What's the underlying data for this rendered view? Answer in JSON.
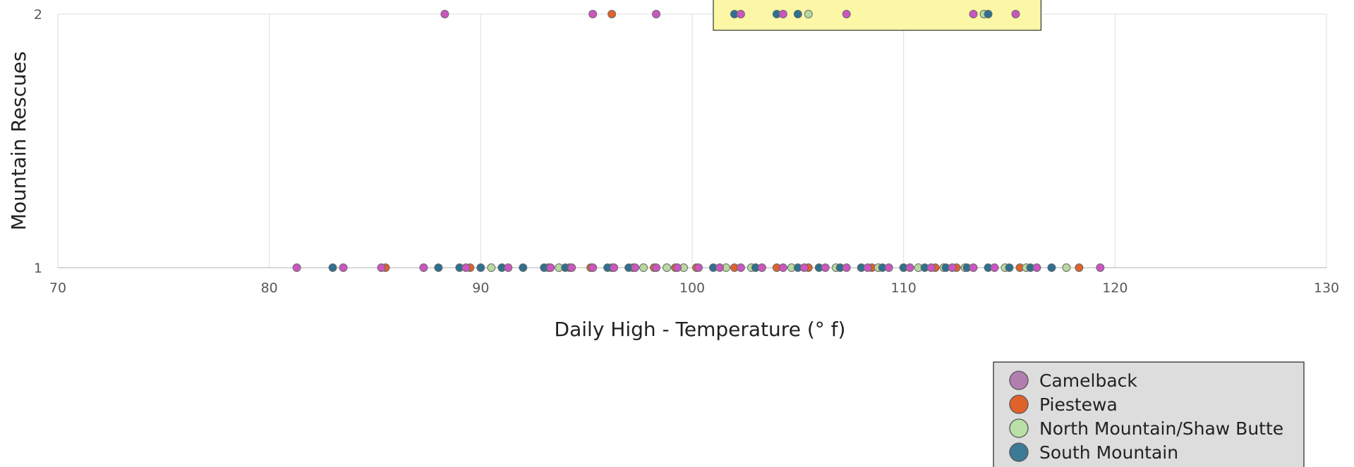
{
  "chart_data": {
    "type": "scatter",
    "title": "",
    "xlabel": "Daily High - Temperature (° f)",
    "ylabel": "Mountain Rescues",
    "xlim": [
      70,
      130
    ],
    "ylim": [
      1,
      2
    ],
    "x_ticks": [
      "70",
      "80",
      "90",
      "100",
      "110",
      "120",
      "130"
    ],
    "y_ticks": [
      "1",
      "2"
    ],
    "grid": "vertical",
    "legend_position": "bottom-right",
    "highlight": {
      "x_range": [
        101,
        116.5
      ],
      "y": 2,
      "color": "#fbf7a6"
    },
    "series": [
      {
        "name": "Camelback",
        "color": "#cc55c0",
        "legend_color": "#b07fb0",
        "points": [
          [
            88.3,
            2
          ],
          [
            95.3,
            2
          ],
          [
            98.3,
            2
          ],
          [
            102.3,
            2
          ],
          [
            104.3,
            2
          ],
          [
            107.3,
            2
          ],
          [
            113.3,
            2
          ],
          [
            115.3,
            2
          ],
          [
            81.3,
            1
          ],
          [
            83.5,
            1
          ],
          [
            85.3,
            1
          ],
          [
            87.3,
            1
          ],
          [
            89.3,
            1
          ],
          [
            91.3,
            1
          ],
          [
            93.3,
            1
          ],
          [
            94.3,
            1
          ],
          [
            95.3,
            1
          ],
          [
            96.3,
            1
          ],
          [
            97.3,
            1
          ],
          [
            98.3,
            1
          ],
          [
            99.3,
            1
          ],
          [
            100.3,
            1
          ],
          [
            101.3,
            1
          ],
          [
            102.3,
            1
          ],
          [
            103.3,
            1
          ],
          [
            104.3,
            1
          ],
          [
            105.3,
            1
          ],
          [
            106.3,
            1
          ],
          [
            107.3,
            1
          ],
          [
            108.3,
            1
          ],
          [
            109.3,
            1
          ],
          [
            110.3,
            1
          ],
          [
            111.3,
            1
          ],
          [
            112.3,
            1
          ],
          [
            113.3,
            1
          ],
          [
            114.3,
            1
          ],
          [
            116.3,
            1
          ],
          [
            119.3,
            1
          ]
        ]
      },
      {
        "name": "Piestewa",
        "color": "#e0622a",
        "legend_color": "#e0622a",
        "points": [
          [
            96.2,
            2
          ],
          [
            85.5,
            1
          ],
          [
            89.5,
            1
          ],
          [
            93.2,
            1
          ],
          [
            94.2,
            1
          ],
          [
            95.2,
            1
          ],
          [
            96.2,
            1
          ],
          [
            97.2,
            1
          ],
          [
            98.2,
            1
          ],
          [
            99.2,
            1
          ],
          [
            100.2,
            1
          ],
          [
            102,
            1
          ],
          [
            103,
            1
          ],
          [
            104,
            1
          ],
          [
            105.5,
            1
          ],
          [
            108.5,
            1
          ],
          [
            110,
            1
          ],
          [
            111.5,
            1
          ],
          [
            112.5,
            1
          ],
          [
            115.5,
            1
          ],
          [
            118.3,
            1
          ]
        ]
      },
      {
        "name": "North Mountain/Shaw Butte",
        "color": "#b8d9a0",
        "legend_color": "#b8e0a8",
        "points": [
          [
            105.5,
            2
          ],
          [
            113.8,
            2
          ],
          [
            90.5,
            1
          ],
          [
            93.7,
            1
          ],
          [
            97.7,
            1
          ],
          [
            98.8,
            1
          ],
          [
            99.6,
            1
          ],
          [
            101.6,
            1
          ],
          [
            102.8,
            1
          ],
          [
            104.7,
            1
          ],
          [
            106.8,
            1
          ],
          [
            108.8,
            1
          ],
          [
            110.7,
            1
          ],
          [
            111.9,
            1
          ],
          [
            112.9,
            1
          ],
          [
            114.8,
            1
          ],
          [
            115.8,
            1
          ],
          [
            117.7,
            1
          ]
        ]
      },
      {
        "name": "South Mountain",
        "color": "#2e7090",
        "legend_color": "#3d7a95",
        "points": [
          [
            102,
            2
          ],
          [
            104,
            2
          ],
          [
            105,
            2
          ],
          [
            114,
            2
          ],
          [
            83,
            1
          ],
          [
            88,
            1
          ],
          [
            89,
            1
          ],
          [
            90,
            1
          ],
          [
            91,
            1
          ],
          [
            92,
            1
          ],
          [
            93,
            1
          ],
          [
            94,
            1
          ],
          [
            96,
            1
          ],
          [
            97,
            1
          ],
          [
            101,
            1
          ],
          [
            103,
            1
          ],
          [
            105,
            1
          ],
          [
            106,
            1
          ],
          [
            107,
            1
          ],
          [
            108,
            1
          ],
          [
            109,
            1
          ],
          [
            110,
            1
          ],
          [
            111,
            1
          ],
          [
            112,
            1
          ],
          [
            113,
            1
          ],
          [
            114,
            1
          ],
          [
            115,
            1
          ],
          [
            116,
            1
          ],
          [
            117,
            1
          ]
        ]
      }
    ]
  }
}
